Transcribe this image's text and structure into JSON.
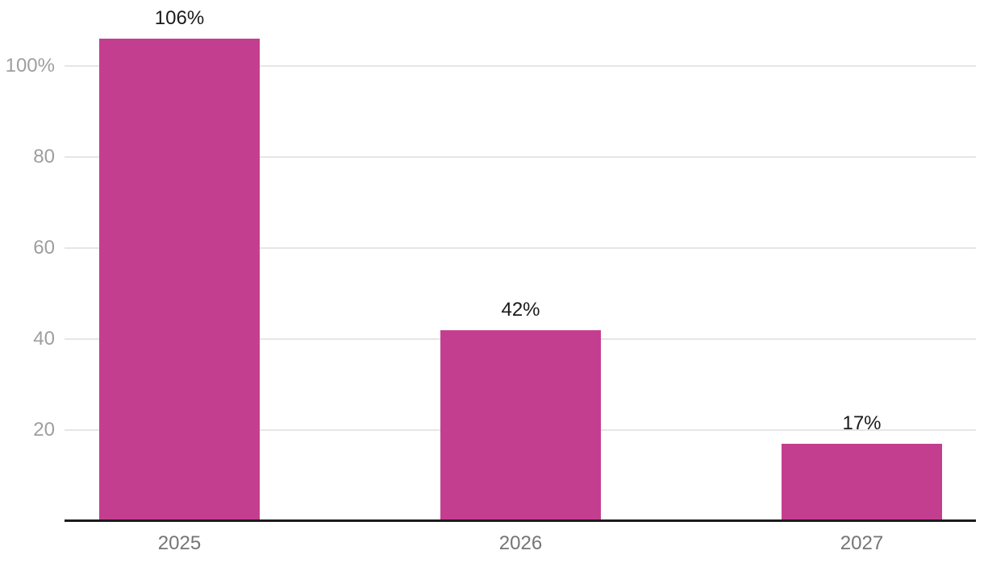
{
  "chart_data": {
    "type": "bar",
    "title": "",
    "categories": [
      "2025",
      "2026",
      "2027"
    ],
    "values": [
      106,
      42,
      17
    ],
    "data_labels": [
      "106%",
      "42%",
      "17%"
    ],
    "xlabel": "",
    "ylabel": "",
    "ylim": [
      0,
      112
    ],
    "y_ticks": [
      {
        "value": 20,
        "label": "20"
      },
      {
        "value": 40,
        "label": "40"
      },
      {
        "value": 60,
        "label": "60"
      },
      {
        "value": 80,
        "label": "80"
      },
      {
        "value": 100,
        "label": "100%"
      }
    ],
    "grid": true,
    "legend": "none",
    "colors": {
      "bar": "#c43e90",
      "grid_line": "#e6e6e6",
      "axis_line": "#1b1b1b",
      "y_tick_label": "#9e9e9e",
      "x_tick_label": "#757575",
      "data_label": "#1a1a1a",
      "background": "#ffffff"
    }
  }
}
